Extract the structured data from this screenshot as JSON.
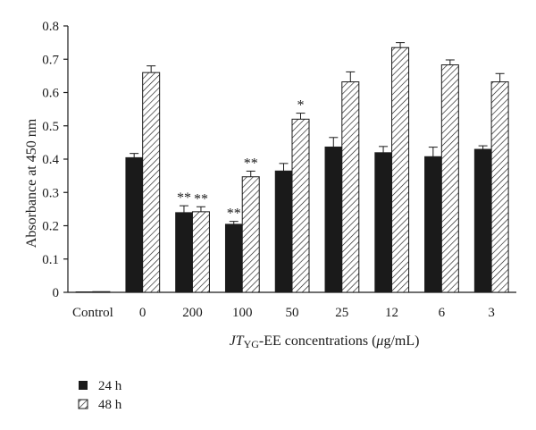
{
  "chart_data": {
    "type": "bar",
    "categories": [
      "Control",
      "0",
      "200",
      "100",
      "50",
      "25",
      "12",
      "6",
      "3"
    ],
    "series": [
      {
        "name": "24 h",
        "values": [
          0.002,
          0.405,
          0.24,
          0.205,
          0.365,
          0.437,
          0.42,
          0.408,
          0.43
        ],
        "errors": [
          0.001,
          0.012,
          0.02,
          0.008,
          0.022,
          0.028,
          0.018,
          0.028,
          0.01
        ],
        "color": "#1a1a1a",
        "pattern": "solid"
      },
      {
        "name": "48 h",
        "values": [
          0.002,
          0.66,
          0.242,
          0.347,
          0.52,
          0.632,
          0.735,
          0.683,
          0.632
        ],
        "errors": [
          0.001,
          0.02,
          0.015,
          0.017,
          0.018,
          0.03,
          0.015,
          0.015,
          0.025
        ],
        "color": "#1a1a1a",
        "pattern": "hatched"
      }
    ],
    "significance": [
      {
        "category_index": 2,
        "series_index": 0,
        "label": "**"
      },
      {
        "category_index": 2,
        "series_index": 1,
        "label": "**"
      },
      {
        "category_index": 3,
        "series_index": 0,
        "label": "**"
      },
      {
        "category_index": 3,
        "series_index": 1,
        "label": "**"
      },
      {
        "category_index": 4,
        "series_index": 1,
        "label": "*"
      }
    ],
    "ylabel": "Absorbance at 450 nm",
    "xlabel": {
      "prefix": "JT",
      "subscript": "YG",
      "suffix": "-EE concentrations (",
      "mu": "μ",
      "unit": "g/mL)"
    },
    "ylim": [
      0,
      0.8
    ],
    "yticks": [
      "0",
      "0.1",
      "0.2",
      "0.3",
      "0.4",
      "0.5",
      "0.6",
      "0.7",
      "0.8"
    ],
    "grid": false,
    "legend_position": "bottom-left"
  }
}
